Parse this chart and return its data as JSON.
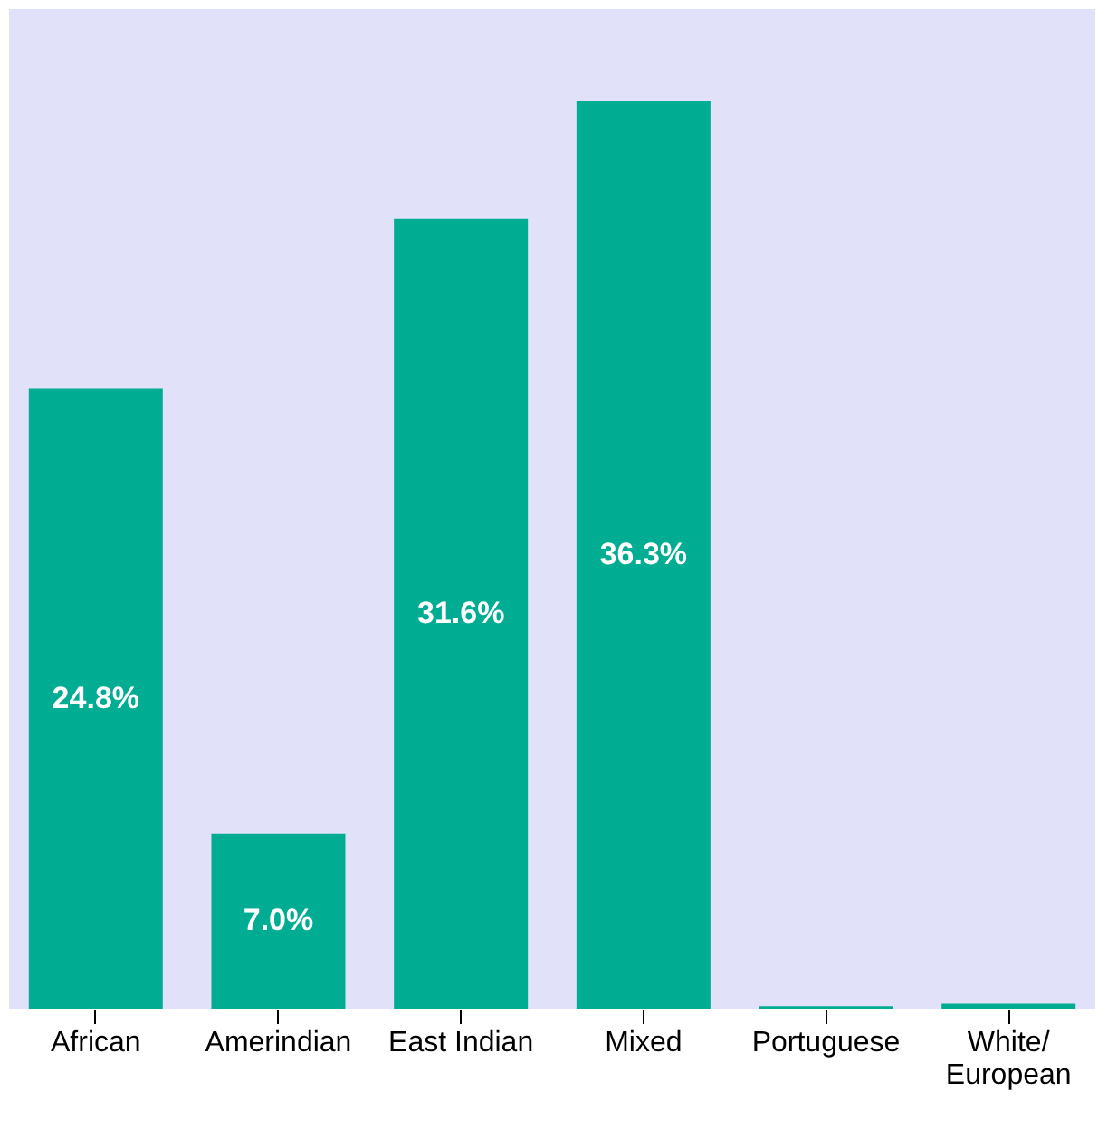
{
  "chart_data": {
    "type": "bar",
    "categories": [
      "African",
      "Amerindian",
      "East Indian",
      "Mixed",
      "Portuguese",
      "White/\nEuropean"
    ],
    "values": [
      24.8,
      7.0,
      31.6,
      36.3,
      0.1,
      0.2
    ],
    "value_labels": [
      "24.8%",
      "7.0%",
      "31.6%",
      "36.3%",
      null,
      null
    ],
    "color": "#00ad93",
    "grid": false
  }
}
